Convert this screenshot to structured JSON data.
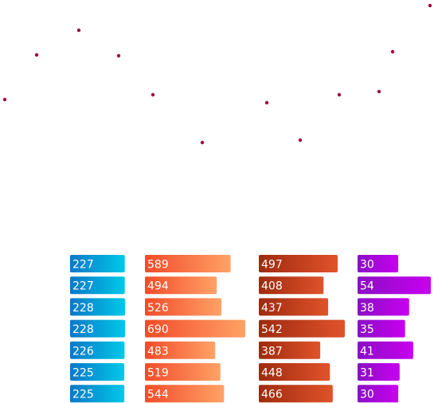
{
  "chart_data": [
    {
      "type": "scatter",
      "color": "#a0003c",
      "points": [
        {
          "x": 0,
          "y": 125
        },
        {
          "x": 1,
          "y": 69
        },
        {
          "x": 2,
          "y": 38
        },
        {
          "x": 3,
          "y": 70
        },
        {
          "x": 4,
          "y": 119
        },
        {
          "x": 5,
          "y": 179
        },
        {
          "x": 6,
          "y": 129
        },
        {
          "x": 7,
          "y": 176
        },
        {
          "x": 8,
          "y": 119
        },
        {
          "x": 9,
          "y": 115
        },
        {
          "x": 10,
          "y": 65
        },
        {
          "x": 11,
          "y": 7
        }
      ]
    },
    {
      "type": "bar",
      "orientation": "horizontal",
      "columns": [
        {
          "values": [
            227,
            227,
            228,
            228,
            226,
            225,
            225
          ],
          "colors": [
            "#0a78c8",
            "#00c8e8"
          ]
        },
        {
          "values": [
            589,
            494,
            526,
            690,
            483,
            519,
            544
          ],
          "colors": [
            "#f24b2a",
            "#ffa266"
          ]
        },
        {
          "values": [
            497,
            408,
            437,
            542,
            387,
            448,
            466
          ],
          "colors": [
            "#9e2a0e",
            "#e0532b"
          ]
        },
        {
          "values": [
            30,
            54,
            38,
            35,
            41,
            31,
            30
          ],
          "colors": [
            "#8a0fc4",
            "#c800f0"
          ]
        }
      ]
    }
  ]
}
